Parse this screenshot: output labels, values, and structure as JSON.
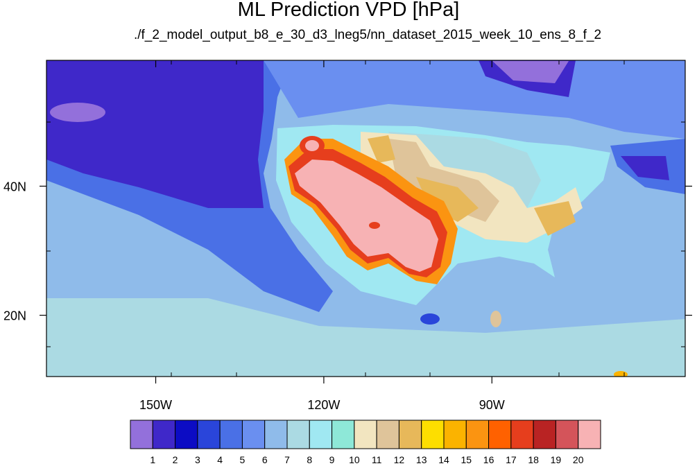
{
  "title": "ML Prediction VPD [hPa]",
  "subtitle": "./f_2_model_output_b8_e_30_d3_lneg5/nn_dataset_2015_week_10_ens_8_f_2",
  "map": {
    "lon_range": [
      -169.5,
      -55.5
    ],
    "lat_range": [
      10.5,
      59.5
    ],
    "lon_ticks": [
      {
        "value": -150,
        "label": "150W"
      },
      {
        "value": -120,
        "label": "120W"
      },
      {
        "value": -90,
        "label": "90W"
      }
    ],
    "lat_ticks": [
      {
        "value": 40,
        "label": "40N"
      },
      {
        "value": 20,
        "label": "20N"
      }
    ]
  },
  "colorbar": {
    "labels": [
      "1",
      "2",
      "3",
      "4",
      "5",
      "6",
      "7",
      "8",
      "9",
      "10",
      "11",
      "12",
      "13",
      "14",
      "15",
      "16",
      "17",
      "18",
      "19",
      "20"
    ],
    "colors": [
      "#9370db",
      "#3f28c9",
      "#0c0cc4",
      "#2a45da",
      "#4a70e6",
      "#6a8ff0",
      "#8fbbea",
      "#abdae3",
      "#a0e8f2",
      "#8ee8d8",
      "#f2e5c0",
      "#dfc49a",
      "#e7b85a",
      "#fdde00",
      "#fbb300",
      "#fb9411",
      "#ff6100",
      "#e63e1d",
      "#b92323",
      "#d4545a",
      "#f7b2b4"
    ]
  }
}
